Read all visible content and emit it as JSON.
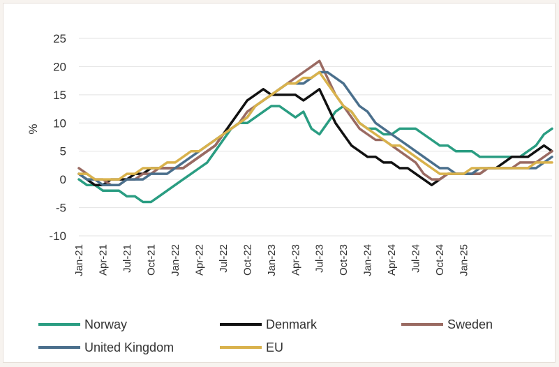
{
  "chart_data": {
    "type": "line",
    "ylabel": "%",
    "ylim": [
      -10,
      25
    ],
    "yticks": [
      "-10",
      "-5",
      "0",
      "5",
      "10",
      "15",
      "20",
      "25"
    ],
    "x_labels": [
      "Jan-21",
      "Apr-21",
      "Jul-21",
      "Oct-21",
      "Jan-22",
      "Apr-22",
      "Jul-22",
      "Oct-22",
      "Jan-23",
      "Apr-23",
      "Jul-23",
      "Oct-23",
      "Jan-24",
      "Apr-24",
      "Jul-24",
      "Oct-24",
      "Jan-25"
    ],
    "grid": "horizontal",
    "legend_position": "bottom",
    "series": [
      {
        "name": "Norway",
        "color": "#2a9d82",
        "values": [
          0,
          -1,
          -1,
          -2,
          -2,
          -2,
          -3,
          -3,
          -4,
          -4,
          -3,
          -2,
          -1,
          0,
          1,
          2,
          3,
          5,
          7,
          9,
          10,
          10,
          11,
          12,
          13,
          13,
          12,
          11,
          12,
          9,
          8,
          10,
          12,
          13,
          12,
          10,
          9,
          9,
          8,
          8,
          9,
          9,
          9,
          8,
          7,
          6,
          6,
          5,
          5,
          5,
          4,
          4,
          4,
          4,
          4,
          4,
          5,
          6,
          8,
          9
        ]
      },
      {
        "name": "Denmark",
        "color": "#111111",
        "values": [
          1,
          0,
          -1,
          -1,
          0,
          0,
          0,
          1,
          1,
          2,
          2,
          2,
          2,
          2,
          3,
          4,
          5,
          6,
          8,
          10,
          12,
          14,
          15,
          16,
          15,
          15,
          15,
          15,
          14,
          15,
          16,
          13,
          10,
          8,
          6,
          5,
          4,
          4,
          3,
          3,
          2,
          2,
          1,
          0,
          -1,
          0,
          1,
          1,
          1,
          1,
          1,
          2,
          2,
          3,
          4,
          4,
          4,
          5,
          6,
          5
        ]
      },
      {
        "name": "Sweden",
        "color": "#9a6a62",
        "values": [
          2,
          1,
          0,
          0,
          -1,
          -1,
          0,
          0,
          1,
          1,
          2,
          2,
          2,
          2,
          3,
          4,
          5,
          6,
          8,
          9,
          10,
          12,
          13,
          14,
          15,
          16,
          17,
          18,
          19,
          20,
          21,
          18,
          15,
          13,
          11,
          9,
          8,
          7,
          7,
          6,
          5,
          4,
          3,
          1,
          0,
          0,
          1,
          1,
          1,
          1,
          1,
          2,
          2,
          2,
          2,
          3,
          3,
          3,
          4,
          5
        ]
      },
      {
        "name": "United Kingdom",
        "color": "#4a6f8c",
        "values": [
          1,
          0,
          0,
          -1,
          -1,
          -1,
          0,
          0,
          0,
          1,
          1,
          1,
          2,
          3,
          4,
          5,
          6,
          7,
          8,
          9,
          10,
          11,
          13,
          14,
          15,
          16,
          17,
          17,
          17,
          18,
          19,
          19,
          18,
          17,
          15,
          13,
          12,
          10,
          9,
          8,
          7,
          6,
          5,
          4,
          3,
          2,
          2,
          1,
          1,
          1,
          2,
          2,
          2,
          2,
          2,
          2,
          2,
          2,
          3,
          4
        ]
      },
      {
        "name": "EU",
        "color": "#d9b24c",
        "values": [
          1,
          1,
          0,
          0,
          0,
          0,
          1,
          1,
          2,
          2,
          2,
          3,
          3,
          4,
          5,
          5,
          6,
          7,
          8,
          9,
          10,
          11,
          13,
          14,
          15,
          16,
          17,
          17,
          18,
          18,
          19,
          17,
          15,
          13,
          12,
          10,
          9,
          8,
          7,
          6,
          6,
          5,
          4,
          3,
          2,
          1,
          1,
          1,
          1,
          2,
          2,
          2,
          2,
          2,
          2,
          2,
          2,
          3,
          3,
          3
        ]
      }
    ]
  }
}
